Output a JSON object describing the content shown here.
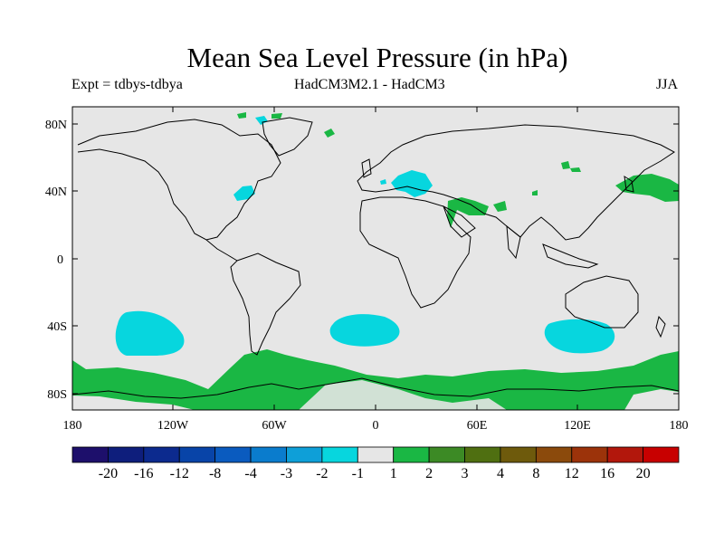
{
  "title": "Mean Sea Level Pressure (in hPa)",
  "subtitle_left": "Expt = tdbys-tdbya",
  "subtitle_center": "HadCM3M2.1 - HadCM3",
  "subtitle_right": "JJA",
  "axes": {
    "lat_ticks": [
      "80N",
      "40N",
      "0",
      "40S",
      "80S"
    ],
    "lon_ticks": [
      "180",
      "120W",
      "60W",
      "0",
      "60E",
      "120E",
      "180"
    ]
  },
  "colorbar": {
    "colors": [
      "#1d0f6b",
      "#0e1e7c",
      "#0c2a8e",
      "#0844a8",
      "#0a5bbf",
      "#0a7ccd",
      "#0e9fd8",
      "#07d6de",
      "#e6e6e6",
      "#1ab744",
      "#3c8a25",
      "#4f6f11",
      "#6e5a0c",
      "#8b4a0c",
      "#9c330a",
      "#b2170c",
      "#c80000"
    ],
    "labels": [
      "-20",
      "-16",
      "-12",
      "-8",
      "-4",
      "-3",
      "-2",
      "-1",
      "1",
      "2",
      "3",
      "4",
      "8",
      "12",
      "16",
      "20"
    ]
  },
  "fill_colors": {
    "land_bg": "#e6e6e6",
    "negative": "#07d6de",
    "positive": "#1ab744"
  }
}
